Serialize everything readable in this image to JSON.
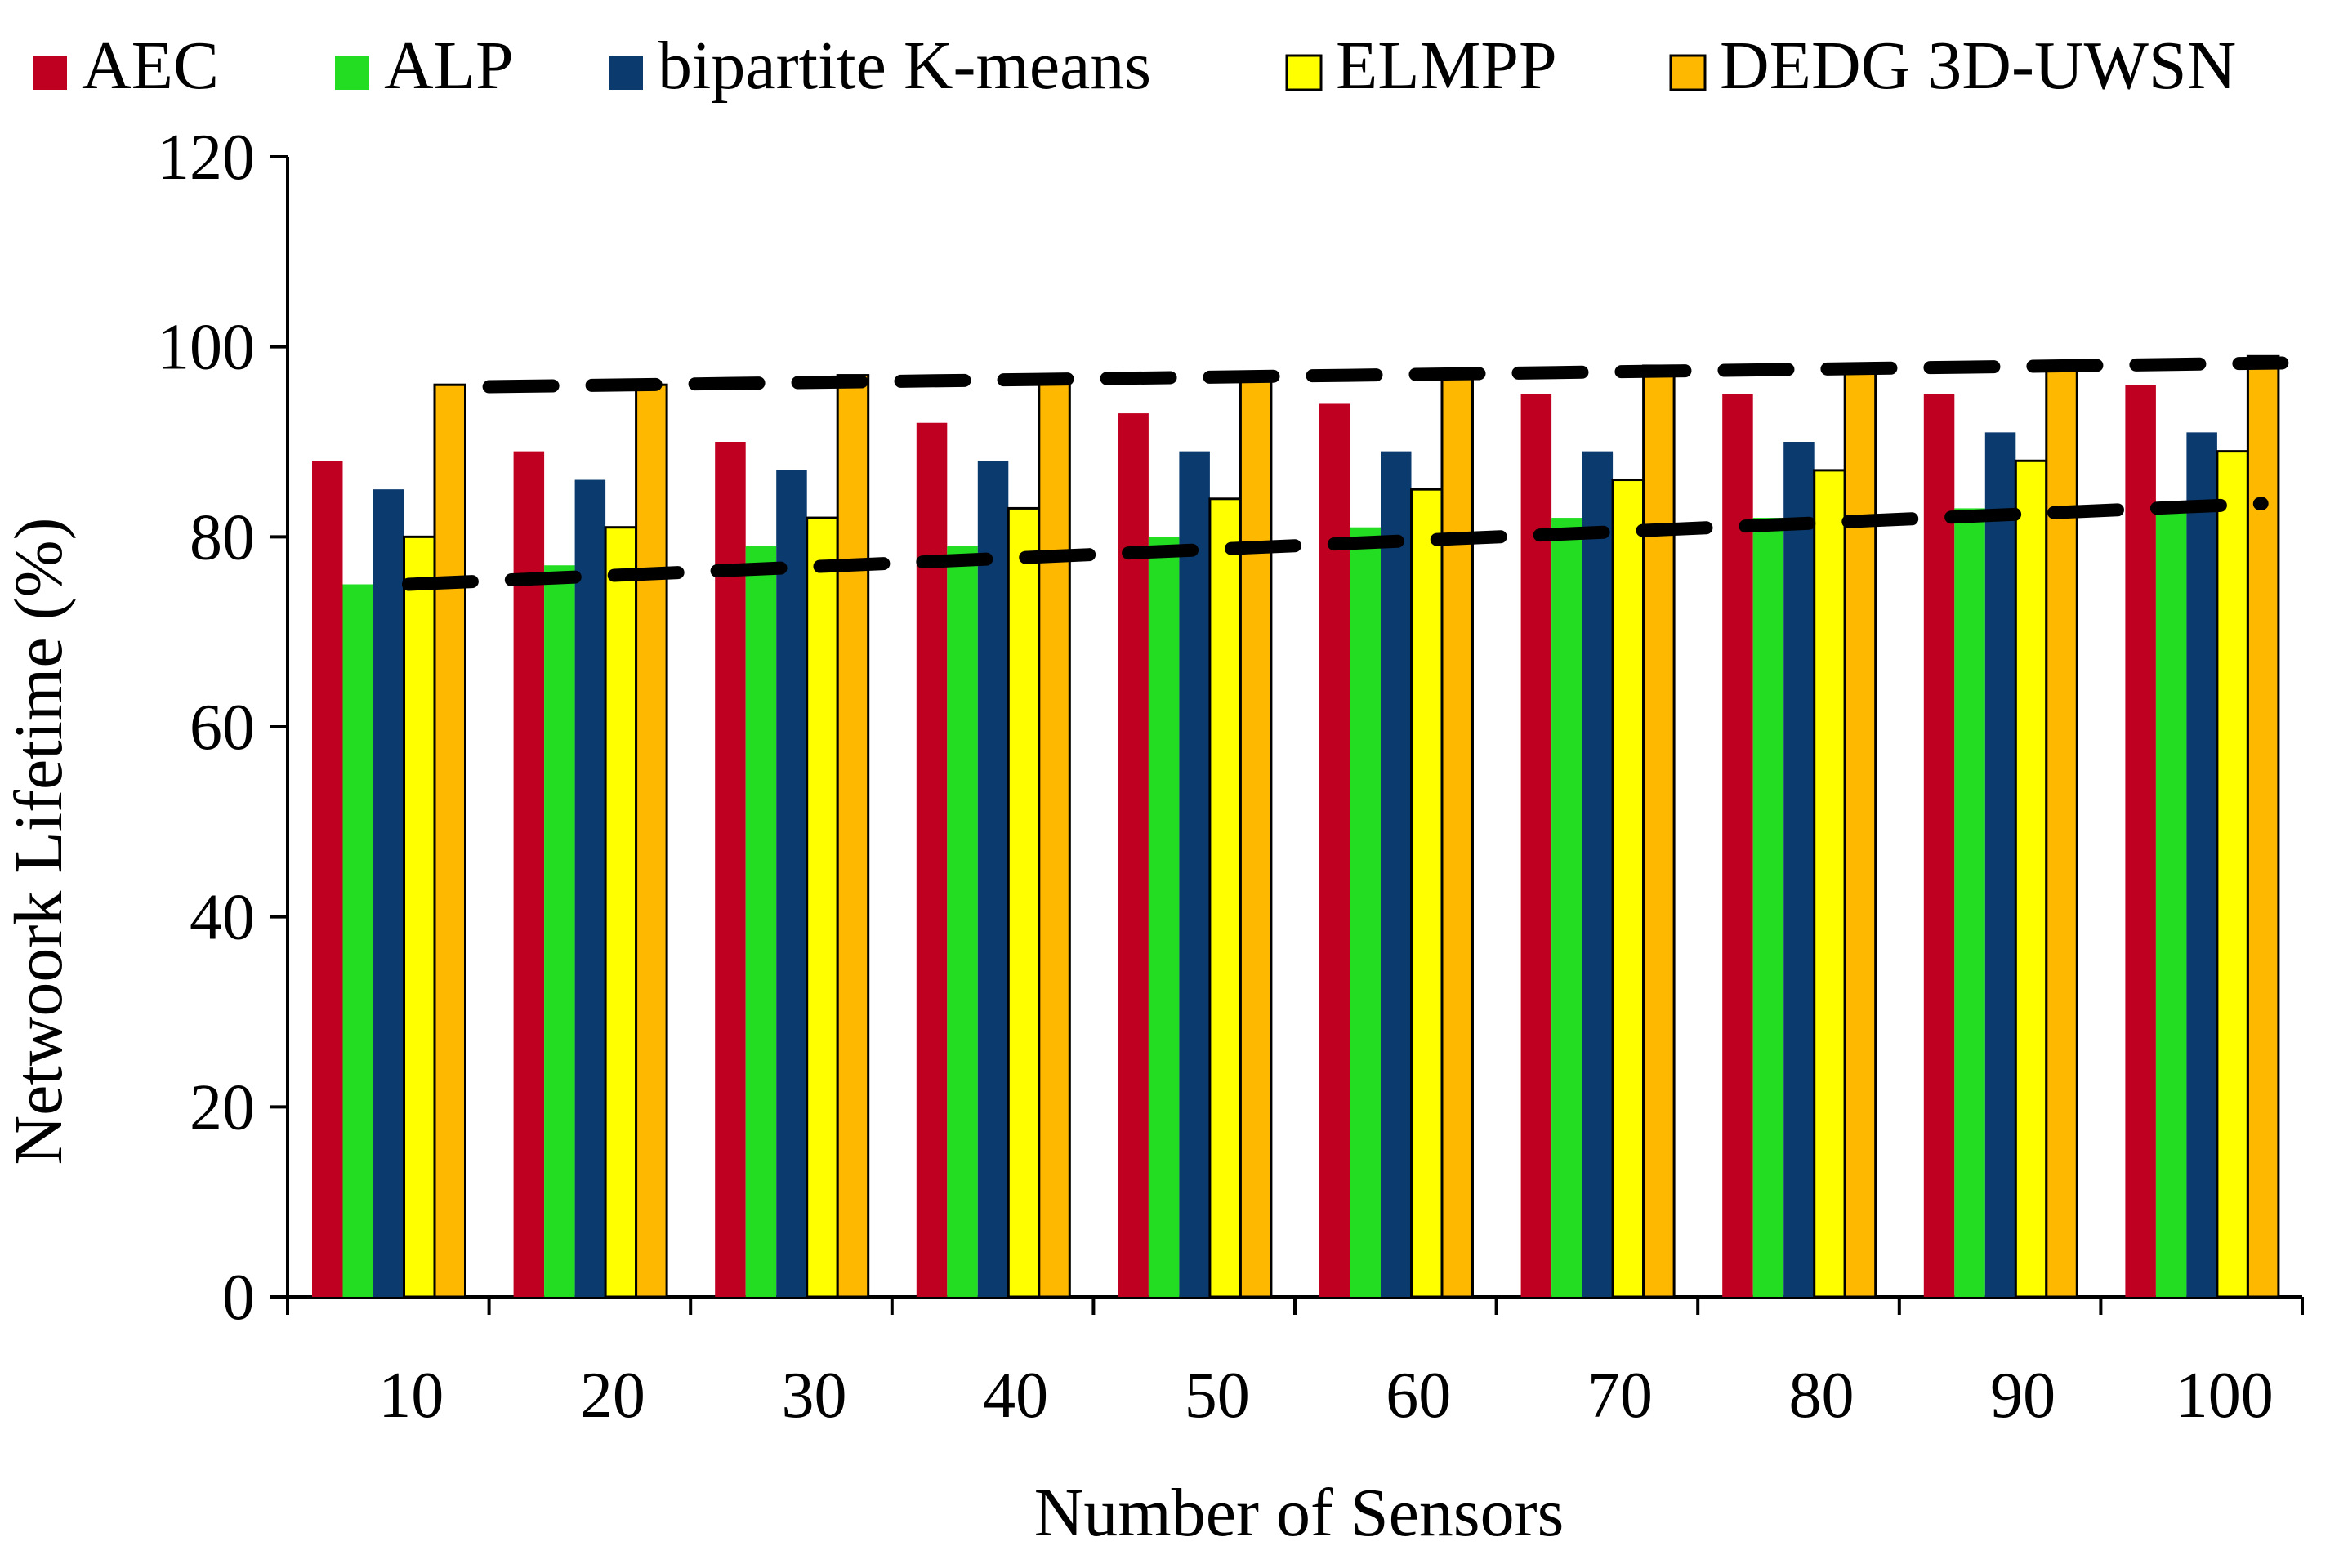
{
  "chart_data": {
    "type": "bar",
    "xlabel": "Number of Sensors",
    "ylabel": "Netwoork Lifetime (%)",
    "ylim": [
      0,
      120
    ],
    "yticks": [
      0,
      20,
      40,
      60,
      80,
      100,
      120
    ],
    "categories": [
      "10",
      "20",
      "30",
      "40",
      "50",
      "60",
      "70",
      "80",
      "90",
      "100"
    ],
    "legend_position": "top",
    "grid": false,
    "series": [
      {
        "name": "AEC",
        "color": "#c00020",
        "values": [
          88,
          89,
          90,
          92,
          93,
          94,
          95,
          95,
          95,
          96
        ]
      },
      {
        "name": "ALP",
        "color": "#22dd22",
        "values": [
          75,
          77,
          79,
          79,
          80,
          81,
          82,
          82,
          83,
          83
        ]
      },
      {
        "name": "bipartite K-means",
        "color": "#0b3a6e",
        "values": [
          85,
          86,
          87,
          88,
          89,
          89,
          89,
          90,
          91,
          91
        ]
      },
      {
        "name": "ELMPP",
        "color": "#ffff00",
        "values": [
          80,
          81,
          82,
          83,
          84,
          85,
          86,
          87,
          88,
          89
        ]
      },
      {
        "name": "DEDG 3D-UWSN",
        "color": "#ffb800",
        "values": [
          96,
          96,
          97,
          97,
          97,
          97,
          98,
          98,
          98,
          99
        ]
      }
    ],
    "trendlines": [
      {
        "style": "dashed",
        "color": "#000000",
        "from": [
          0.1,
          75
        ],
        "to": [
          9.3,
          83.5
        ]
      },
      {
        "style": "dashed",
        "color": "#000000",
        "from": [
          0.5,
          95.8
        ],
        "to": [
          9.4,
          98.3
        ]
      }
    ]
  }
}
